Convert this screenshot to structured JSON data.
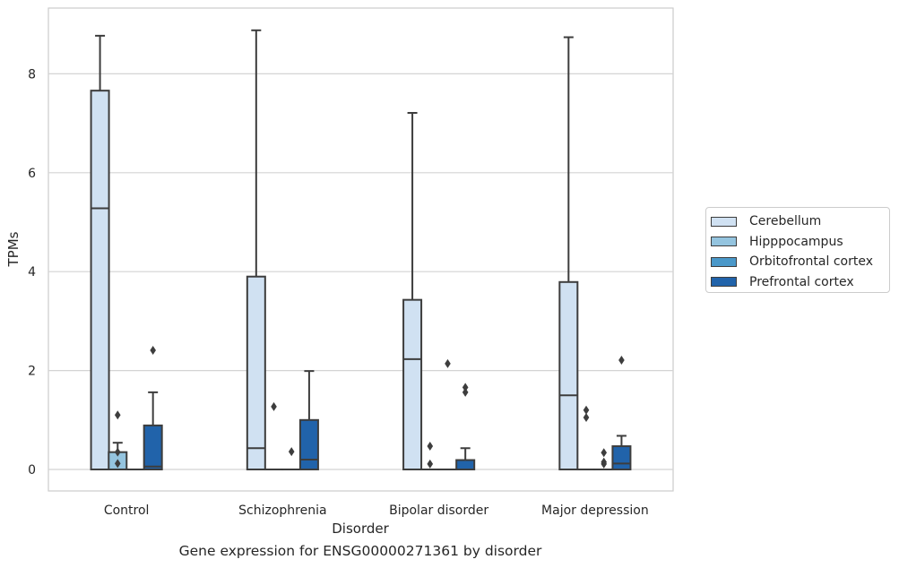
{
  "chart_data": {
    "type": "box",
    "xlabel": "Disorder",
    "ylabel": "TPMs",
    "caption": "Gene expression for ENSG00000271361 by disorder",
    "categories": [
      "Control",
      "Schizophrenia",
      "Bipolar disorder",
      "Major depression"
    ],
    "ylim": [
      -0.42,
      9.3
    ],
    "yticks": [
      0,
      2,
      4,
      6,
      8
    ],
    "grid": "horizontal",
    "legend_position": "right",
    "series": [
      {
        "name": "Cerebellum",
        "color": "#d0e1f2",
        "boxes": [
          {
            "q1": 0,
            "median": 5.28,
            "q3": 7.66,
            "whisker_low": 0,
            "whisker_high": 8.77,
            "outliers": []
          },
          {
            "q1": 0,
            "median": 0.43,
            "q3": 3.9,
            "whisker_low": 0,
            "whisker_high": 8.88,
            "outliers": []
          },
          {
            "q1": 0,
            "median": 2.23,
            "q3": 3.43,
            "whisker_low": 0,
            "whisker_high": 7.21,
            "outliers": []
          },
          {
            "q1": 0,
            "median": 1.5,
            "q3": 3.79,
            "whisker_low": 0,
            "whisker_high": 8.74,
            "outliers": []
          }
        ]
      },
      {
        "name": "Hipppocampus",
        "color": "#94c4df",
        "boxes": [
          {
            "q1": 0,
            "median": 0,
            "q3": 0.35,
            "whisker_low": 0,
            "whisker_high": 0.54,
            "outliers": [
              1.1,
              0.35,
              0.12
            ]
          },
          {
            "q1": 0,
            "median": 0,
            "q3": 0,
            "whisker_low": 0,
            "whisker_high": 0,
            "outliers": [
              1.27
            ]
          },
          {
            "q1": 0,
            "median": 0,
            "q3": 0,
            "whisker_low": 0,
            "whisker_high": 0,
            "outliers": [
              0.47,
              0.11
            ]
          },
          {
            "q1": 0,
            "median": 0,
            "q3": 0,
            "whisker_low": 0,
            "whisker_high": 0,
            "outliers": [
              1.2,
              1.05
            ]
          }
        ]
      },
      {
        "name": "Orbitofrontal cortex",
        "color": "#4a98c9",
        "boxes": [
          {
            "q1": 0,
            "median": 0,
            "q3": 0,
            "whisker_low": 0,
            "whisker_high": 0,
            "outliers": []
          },
          {
            "q1": 0,
            "median": 0,
            "q3": 0,
            "whisker_low": 0,
            "whisker_high": 0,
            "outliers": [
              0.36
            ]
          },
          {
            "q1": 0,
            "median": 0,
            "q3": 0,
            "whisker_low": 0,
            "whisker_high": 0,
            "outliers": [
              2.14
            ]
          },
          {
            "q1": 0,
            "median": 0,
            "q3": 0,
            "whisker_low": 0,
            "whisker_high": 0,
            "outliers": [
              0.34,
              0.15,
              0.11
            ]
          }
        ]
      },
      {
        "name": "Prefrontal cortex",
        "color": "#2163aa",
        "boxes": [
          {
            "q1": 0,
            "median": 0.06,
            "q3": 0.89,
            "whisker_low": 0,
            "whisker_high": 1.56,
            "outliers": [
              2.41
            ]
          },
          {
            "q1": 0,
            "median": 0.2,
            "q3": 1.0,
            "whisker_low": 0,
            "whisker_high": 1.99,
            "outliers": []
          },
          {
            "q1": 0,
            "median": 0,
            "q3": 0.19,
            "whisker_low": 0,
            "whisker_high": 0.43,
            "outliers": [
              1.66,
              1.56
            ]
          },
          {
            "q1": 0,
            "median": 0.12,
            "q3": 0.47,
            "whisker_low": 0,
            "whisker_high": 0.68,
            "outliers": [
              2.21
            ]
          }
        ]
      }
    ]
  }
}
